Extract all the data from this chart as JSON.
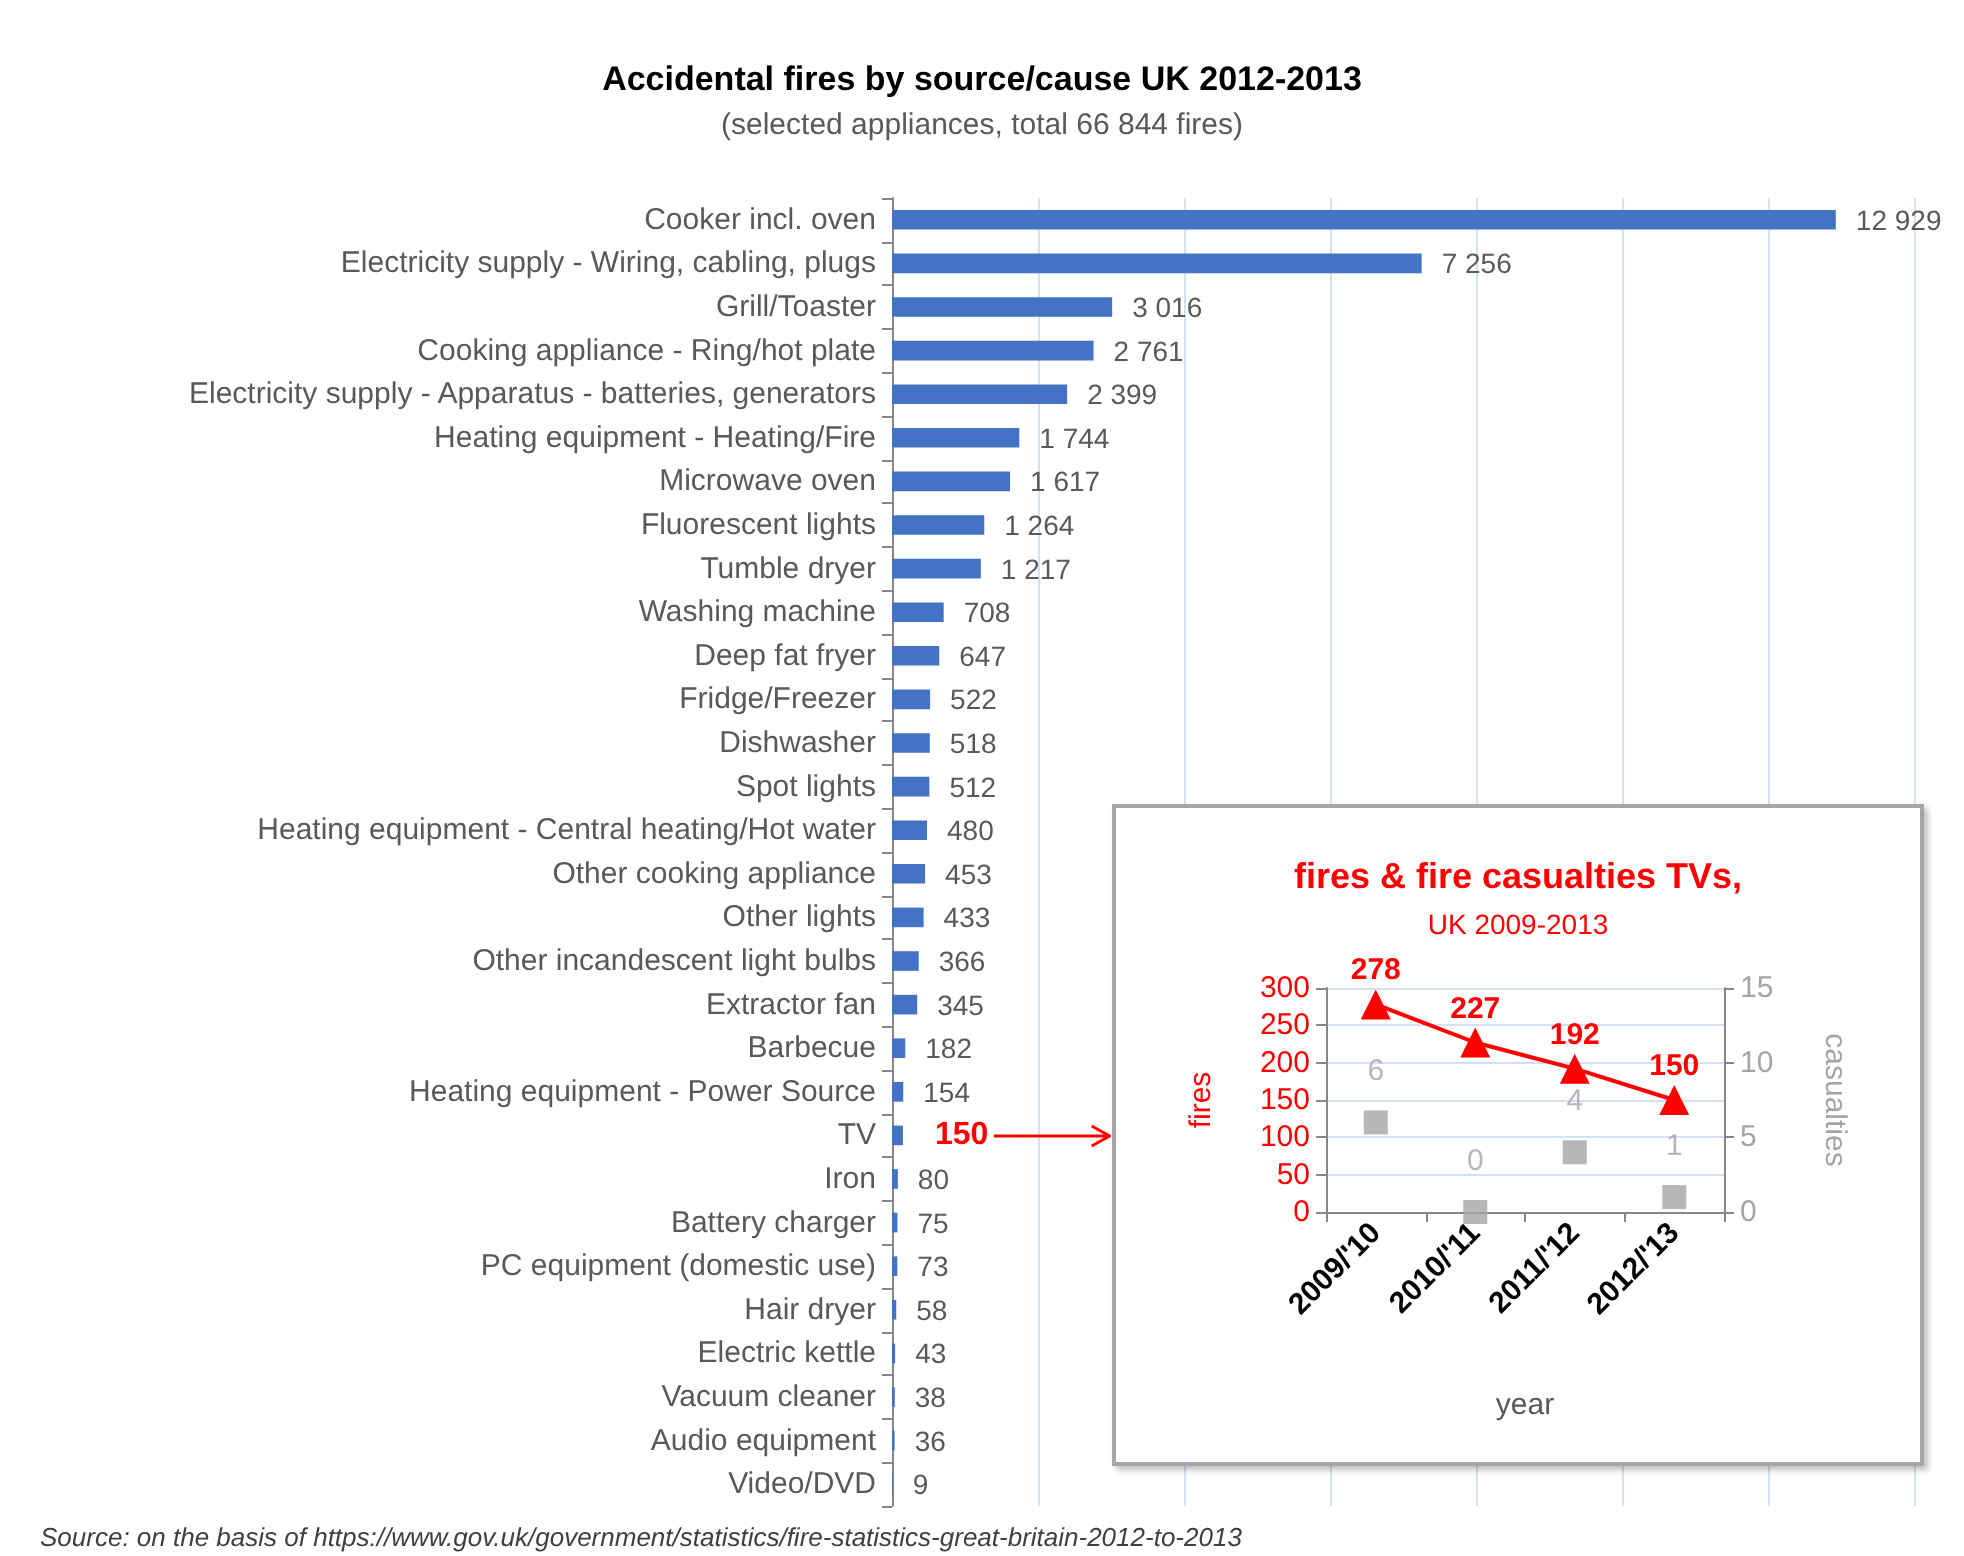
{
  "chart_data": [
    {
      "type": "bar",
      "orientation": "horizontal",
      "title": "Accidental fires by source/cause UK 2012-2013",
      "subtitle": "(selected appliances, total 66 844 fires)",
      "categories": [
        "Cooker incl. oven",
        "Electricity supply - Wiring, cabling, plugs",
        "Grill/Toaster",
        "Cooking appliance - Ring/hot plate",
        "Electricity supply - Apparatus - batteries, generators",
        "Heating equipment - Heating/Fire",
        "Microwave oven",
        "Fluorescent lights",
        "Tumble dryer",
        "Washing machine",
        "Deep fat fryer",
        "Fridge/Freezer",
        "Dishwasher",
        "Spot lights",
        "Heating equipment - Central heating/Hot water",
        "Other cooking appliance",
        "Other lights",
        "Other incandescent light bulbs",
        "Extractor fan",
        "Barbecue",
        "Heating equipment - Power Source",
        "TV",
        "Iron",
        "Battery charger",
        "PC equipment (domestic use)",
        "Hair dryer",
        "Electric kettle",
        "Vacuum cleaner",
        "Audio equipment",
        "Video/DVD"
      ],
      "values": [
        12929,
        7256,
        3016,
        2761,
        2399,
        1744,
        1617,
        1264,
        1217,
        708,
        647,
        522,
        518,
        512,
        480,
        453,
        433,
        366,
        345,
        182,
        154,
        150,
        80,
        75,
        73,
        58,
        43,
        38,
        36,
        9
      ],
      "value_labels": [
        "12 929",
        "7 256",
        "3 016",
        "2 761",
        "2 399",
        "1 744",
        "1 617",
        "1 264",
        "1 217",
        "708",
        "647",
        "522",
        "518",
        "512",
        "480",
        "453",
        "433",
        "366",
        "345",
        "182",
        "154",
        null,
        "80",
        "75",
        "73",
        "58",
        "43",
        "38",
        "36",
        "9"
      ],
      "color": "#4472c4",
      "xlim": [
        0,
        14000
      ],
      "xticks": [
        {
          "value": 0,
          "label": null
        },
        {
          "value": 2000,
          "label": null
        },
        {
          "value": 4000,
          "label": null
        },
        {
          "value": 6000,
          "label": null
        },
        {
          "value": 8000,
          "label": null
        },
        {
          "value": 10000,
          "label": null
        },
        {
          "value": 12000,
          "label": null
        },
        {
          "value": 14000,
          "label": null
        }
      ],
      "grid": "x",
      "tick_labels": "y",
      "annotations": [
        {
          "text": "150",
          "x": 150,
          "y": "TV"
        },
        "Source: on the basis of https://www.gov.uk/government/statistics/fire-statistics-great-britain-2012-to-2013"
      ]
    },
    {
      "type": "line",
      "title": "fires & fire casualties TVs,",
      "subtitle": "UK 2009-2013",
      "categories": [
        "2009/'10",
        "2010/'11",
        "2011/'12",
        "2012/'13"
      ],
      "series": [
        {
          "color": "#ff0000",
          "marker": "triangle",
          "values": [
            278,
            227,
            192,
            150
          ]
        },
        {
          "type": "scatter",
          "axis": "y2",
          "color": "#a5a5a5",
          "marker": "square",
          "values": [
            6,
            0,
            4,
            1
          ]
        }
      ],
      "xlabel": "year",
      "ylabel": "fires",
      "y2label": "casualties",
      "ylim": [
        0,
        300
      ],
      "yticks": [
        0,
        50,
        100,
        150,
        200,
        250,
        300
      ],
      "y2lim": [
        0,
        15
      ],
      "y2ticks": [
        0,
        5,
        10,
        15
      ],
      "grid": "y",
      "data_labels": true
    }
  ]
}
